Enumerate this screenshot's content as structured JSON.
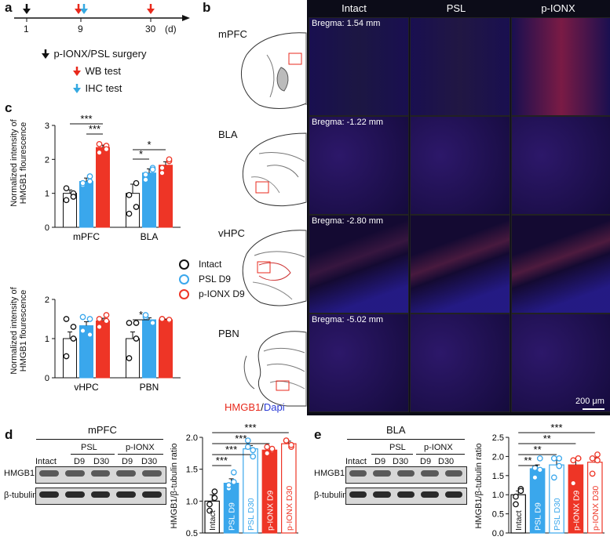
{
  "panel_a": {
    "label": "a",
    "timeline_ticks": [
      "1",
      "9",
      "30"
    ],
    "unit": "(d)",
    "legend": [
      {
        "text": "p-IONX/PSL surgery",
        "color": "#111111"
      },
      {
        "text": "WB test",
        "color": "#e8291c"
      },
      {
        "text": "IHC test",
        "color": "#35a9e1"
      }
    ]
  },
  "panel_b": {
    "label": "b",
    "columns": [
      "Intact",
      "PSL",
      "p-IONX"
    ],
    "rows": [
      {
        "region": "mPFC",
        "bregma": "Bregma: 1.54 mm"
      },
      {
        "region": "BLA",
        "bregma": "Bregma: -1.22 mm"
      },
      {
        "region": "vHPC",
        "bregma": "Bregma: -2.80 mm"
      },
      {
        "region": "PBN",
        "bregma": "Bregma: -5.02 mm"
      }
    ],
    "stain_red": "HMGB1",
    "stain_sep": "/",
    "stain_blue": "Dapi",
    "scale_bar": "200 μm"
  },
  "panel_c": {
    "label": "c",
    "ylabel_line1": "Normalized intensity of",
    "ylabel_line2": "HMGB1 flourescence",
    "legend": [
      "Intact",
      "PSL D9",
      "p-IONX D9"
    ],
    "colors": {
      "intact": "#ffffff",
      "psl": "#3aa7ec",
      "pionx": "#ee3526"
    }
  },
  "chart_data": [
    {
      "type": "bar",
      "panel": "c-top",
      "categories": [
        "mPFC",
        "BLA"
      ],
      "ylim": [
        0,
        3
      ],
      "yticks": [
        "0",
        "1",
        "2",
        "3"
      ],
      "series": [
        {
          "name": "Intact",
          "values": [
            1.0,
            1.0
          ],
          "err": [
            0.1,
            0.27
          ],
          "points": [
            [
              0.8,
              1.0,
              1.15,
              0.9
            ],
            [
              0.4,
              1.3,
              0.95,
              0.6
            ]
          ]
        },
        {
          "name": "PSL D9",
          "values": [
            1.35,
            1.6
          ],
          "err": [
            0.1,
            0.12
          ],
          "points": [
            [
              1.25,
              1.5,
              1.3,
              1.35
            ],
            [
              1.4,
              1.75,
              1.55,
              1.7
            ]
          ]
        },
        {
          "name": "p-IONX D9",
          "values": [
            2.35,
            1.83
          ],
          "err": [
            0.07,
            0.1
          ],
          "points": [
            [
              2.2,
              2.4,
              2.45,
              2.3
            ],
            [
              1.6,
              1.95,
              1.75,
              2.0
            ]
          ]
        }
      ],
      "significance": [
        "***",
        "***",
        "*",
        "*"
      ]
    },
    {
      "type": "bar",
      "panel": "c-bottom",
      "categories": [
        "vHPC",
        "PBN"
      ],
      "ylim": [
        0,
        2
      ],
      "yticks": [
        "0",
        "1",
        "2"
      ],
      "series": [
        {
          "name": "Intact",
          "values": [
            1.0,
            1.0
          ],
          "err": [
            0.17,
            0.17
          ],
          "points": [
            [
              0.55,
              1.3,
              1.5,
              1.0
            ],
            [
              0.5,
              1.4,
              1.4,
              1.0
            ]
          ]
        },
        {
          "name": "PSL D9",
          "values": [
            1.33,
            1.48
          ],
          "err": [
            0.1,
            0.05
          ],
          "points": [
            [
              1.2,
              1.5,
              1.55,
              1.1
            ],
            [
              1.55,
              1.4,
              1.6,
              1.4
            ]
          ]
        },
        {
          "name": "p-IONX D9",
          "values": [
            1.45,
            1.48
          ],
          "err": [
            0.07,
            0.02
          ],
          "points": [
            [
              1.3,
              1.6,
              1.5,
              1.45
            ],
            [
              1.5,
              1.45,
              1.5,
              1.48
            ]
          ]
        }
      ],
      "significance": [
        "*"
      ]
    },
    {
      "type": "bar",
      "panel": "d",
      "title": "HMGB1/β-tubulin ratio",
      "categories": [
        "Intact",
        "PSL D9",
        "PSL D30",
        "p-IONX D9",
        "p-IONX D30"
      ],
      "values": [
        1.0,
        1.28,
        1.82,
        1.8,
        1.9
      ],
      "err": [
        0.1,
        0.07,
        0.05,
        0.04,
        0.04
      ],
      "points": [
        [
          0.85,
          1.15,
          0.95,
          1.05
        ],
        [
          1.2,
          1.45,
          1.25,
          1.3
        ],
        [
          1.95,
          1.7,
          1.85,
          1.8
        ],
        [
          1.75,
          1.8,
          1.85,
          1.82
        ],
        [
          1.95,
          1.85,
          1.95,
          1.88
        ]
      ],
      "ylim": [
        0.5,
        2.0
      ],
      "yticks": [
        "0.5",
        "1.0",
        "1.5",
        "2.0"
      ],
      "significance": [
        "***",
        "***",
        "***",
        "***"
      ]
    },
    {
      "type": "bar",
      "panel": "e",
      "title": "HMGB1/β-tubulin ratio",
      "categories": [
        "Intact",
        "PSL D9",
        "PSL D30",
        "p-IONX D9",
        "p-IONX D30"
      ],
      "values": [
        1.0,
        1.68,
        1.78,
        1.78,
        1.85
      ],
      "err": [
        0.1,
        0.1,
        0.15,
        0.13,
        0.12
      ],
      "points": [
        [
          0.75,
          1.15,
          0.95,
          1.1
        ],
        [
          1.45,
          1.95,
          1.7,
          1.65
        ],
        [
          1.45,
          1.95,
          1.95,
          1.75
        ],
        [
          1.3,
          1.95,
          1.9,
          1.95
        ],
        [
          1.55,
          2.05,
          1.95,
          1.9
        ]
      ],
      "ylim": [
        0,
        2.5
      ],
      "yticks": [
        "0.0",
        "0.5",
        "1.0",
        "1.5",
        "2.0",
        "2.5"
      ],
      "significance": [
        "**",
        "**",
        "**",
        "***"
      ]
    }
  ],
  "panel_d": {
    "label": "d",
    "region": "mPFC",
    "groups": [
      "PSL",
      "p-IONX"
    ],
    "lanes": [
      "Intact",
      "D9",
      "D30",
      "D9",
      "D30"
    ],
    "bands": [
      "HMGB1",
      "β-tubulin"
    ]
  },
  "panel_e": {
    "label": "e",
    "region": "BLA",
    "groups": [
      "PSL",
      "p-IONX"
    ],
    "lanes": [
      "Intact",
      "D9",
      "D30",
      "D9",
      "D30"
    ],
    "bands": [
      "HMGB1",
      "β-tubulin"
    ]
  }
}
